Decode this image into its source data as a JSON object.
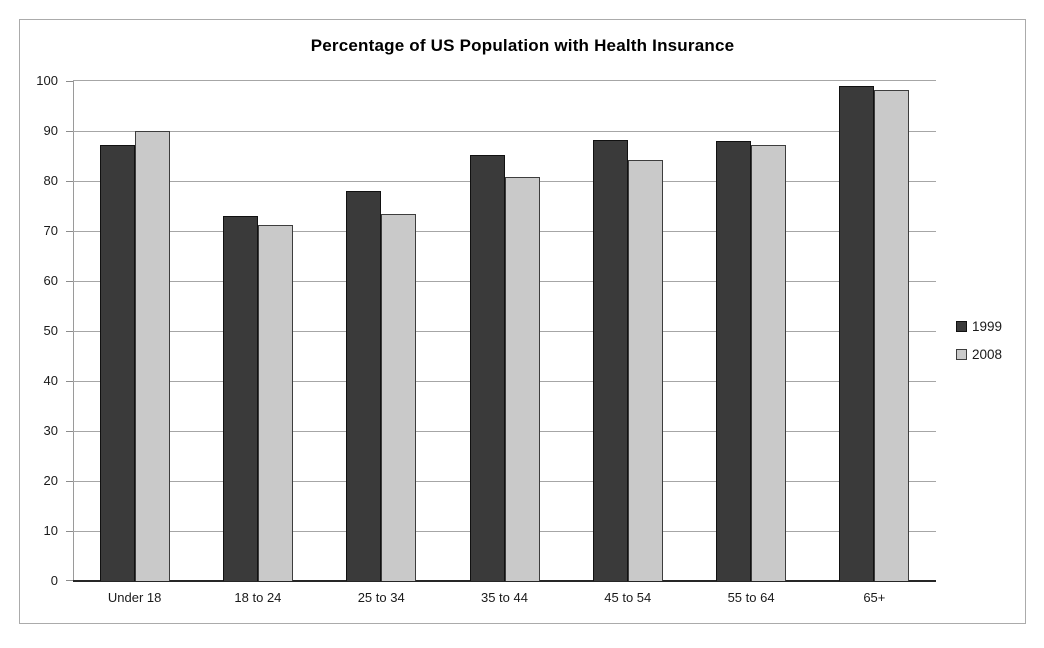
{
  "window": {
    "background_color": "#ffffff",
    "frame_border_color": "#ababab"
  },
  "chart_data": {
    "type": "bar",
    "title": "Percentage of US Population with Health Insurance",
    "xlabel": "",
    "ylabel": "",
    "categories": [
      "Under 18",
      "18 to 24",
      "25 to 34",
      "35 to 44",
      "45 to 54",
      "55 to 64",
      "65+"
    ],
    "series": [
      {
        "name": "1999",
        "color": "#3a3a3a",
        "border_color": "#111111",
        "values": [
          87.3,
          73.1,
          78.1,
          85.2,
          88.2,
          88.0,
          99.1
        ]
      },
      {
        "name": "2008",
        "color": "#c9c9c9",
        "border_color": "#3d3d3d",
        "values": [
          90.1,
          71.3,
          73.4,
          80.8,
          84.2,
          87.3,
          98.2
        ]
      }
    ],
    "ylim": [
      0,
      100
    ],
    "ytick_step": 10,
    "ytick_labels": [
      "0",
      "10",
      "20",
      "30",
      "40",
      "50",
      "60",
      "70",
      "80",
      "90",
      "100"
    ],
    "grid": "horizontal",
    "gridline_color": "#a6a6a6",
    "legend_position": "right"
  }
}
